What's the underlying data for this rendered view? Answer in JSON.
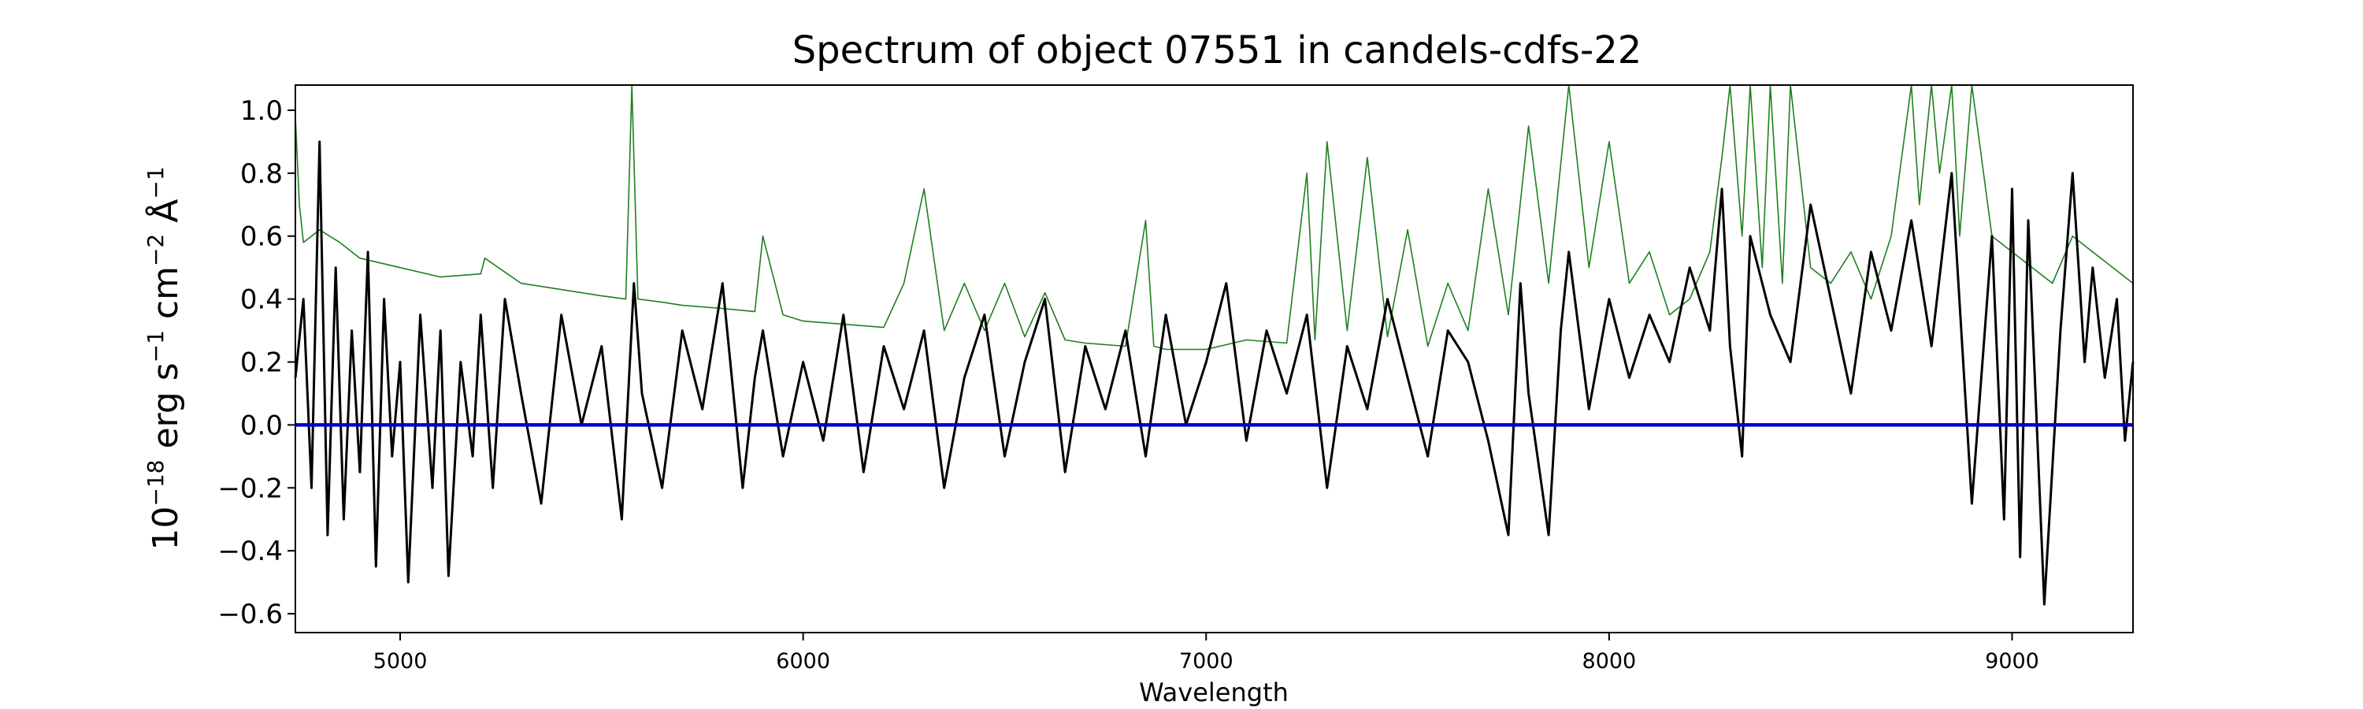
{
  "chart_data": {
    "type": "line",
    "title": "Spectrum of object 07551 in candels-cdfs-22",
    "xlabel": "Wavelength",
    "ylabel_base": "10",
    "ylabel_exp": "−18",
    "ylabel_units": [
      {
        "base": " erg s",
        "exp": "−1"
      },
      {
        "base": " cm",
        "exp": "−2"
      },
      {
        "base": " Å",
        "exp": "−1"
      }
    ],
    "xlim": [
      4740,
      9300
    ],
    "ylim": [
      -0.66,
      1.08
    ],
    "xticks": [
      5000,
      6000,
      7000,
      8000,
      9000
    ],
    "xtick_labels": [
      "5000",
      "6000",
      "7000",
      "8000",
      "9000"
    ],
    "yticks": [
      -0.6,
      -0.4,
      -0.2,
      0.0,
      0.2,
      0.4,
      0.6,
      0.8,
      1.0
    ],
    "ytick_labels": [
      "−0.6",
      "−0.4",
      "−0.2",
      "0.0",
      "0.2",
      "0.4",
      "0.6",
      "0.8",
      "1.0"
    ],
    "grid": false,
    "series": [
      {
        "role": "flux",
        "color": "#000000",
        "x": [
          4740,
          4760,
          4780,
          4800,
          4820,
          4840,
          4860,
          4880,
          4900,
          4920,
          4940,
          4960,
          4980,
          5000,
          5020,
          5050,
          5080,
          5100,
          5120,
          5150,
          5180,
          5200,
          5230,
          5260,
          5300,
          5350,
          5400,
          5450,
          5500,
          5550,
          5580,
          5600,
          5650,
          5700,
          5750,
          5800,
          5850,
          5880,
          5900,
          5950,
          6000,
          6050,
          6100,
          6150,
          6200,
          6250,
          6300,
          6350,
          6400,
          6450,
          6500,
          6550,
          6600,
          6650,
          6700,
          6750,
          6800,
          6850,
          6900,
          6950,
          7000,
          7050,
          7100,
          7150,
          7200,
          7250,
          7300,
          7350,
          7400,
          7450,
          7500,
          7550,
          7600,
          7650,
          7700,
          7750,
          7780,
          7800,
          7850,
          7880,
          7900,
          7950,
          8000,
          8050,
          8100,
          8150,
          8200,
          8250,
          8280,
          8300,
          8330,
          8350,
          8400,
          8450,
          8500,
          8550,
          8600,
          8650,
          8700,
          8750,
          8800,
          8850,
          8900,
          8950,
          8980,
          9000,
          9020,
          9040,
          9080,
          9120,
          9150,
          9180,
          9200,
          9230,
          9260,
          9280,
          9300
        ],
        "y": [
          0.15,
          0.4,
          -0.2,
          0.9,
          -0.35,
          0.5,
          -0.3,
          0.3,
          -0.15,
          0.55,
          -0.45,
          0.4,
          -0.1,
          0.2,
          -0.5,
          0.35,
          -0.2,
          0.3,
          -0.48,
          0.2,
          -0.1,
          0.35,
          -0.2,
          0.4,
          0.1,
          -0.25,
          0.35,
          0.0,
          0.25,
          -0.3,
          0.45,
          0.1,
          -0.2,
          0.3,
          0.05,
          0.45,
          -0.2,
          0.15,
          0.3,
          -0.1,
          0.2,
          -0.05,
          0.35,
          -0.15,
          0.25,
          0.05,
          0.3,
          -0.2,
          0.15,
          0.35,
          -0.1,
          0.2,
          0.4,
          -0.15,
          0.25,
          0.05,
          0.3,
          -0.1,
          0.35,
          0.0,
          0.2,
          0.45,
          -0.05,
          0.3,
          0.1,
          0.35,
          -0.2,
          0.25,
          0.05,
          0.4,
          0.15,
          -0.1,
          0.3,
          0.2,
          -0.05,
          -0.35,
          0.45,
          0.1,
          -0.35,
          0.3,
          0.55,
          0.05,
          0.4,
          0.15,
          0.35,
          0.2,
          0.5,
          0.3,
          0.75,
          0.25,
          -0.1,
          0.6,
          0.35,
          0.2,
          0.7,
          0.4,
          0.1,
          0.55,
          0.3,
          0.65,
          0.25,
          0.8,
          -0.25,
          0.6,
          -0.3,
          0.75,
          -0.42,
          0.65,
          -0.57,
          0.3,
          0.8,
          0.2,
          0.5,
          0.15,
          0.4,
          -0.05,
          0.2
        ]
      },
      {
        "role": "error",
        "color": "#1f7f1f",
        "x": [
          4740,
          4750,
          4760,
          4780,
          4800,
          4850,
          4900,
          5000,
          5100,
          5200,
          5210,
          5300,
          5400,
          5500,
          5560,
          5575,
          5590,
          5650,
          5700,
          5800,
          5880,
          5900,
          5950,
          6000,
          6100,
          6200,
          6250,
          6300,
          6350,
          6400,
          6450,
          6500,
          6550,
          6600,
          6650,
          6700,
          6800,
          6850,
          6870,
          6900,
          7000,
          7100,
          7200,
          7250,
          7270,
          7300,
          7350,
          7400,
          7450,
          7500,
          7550,
          7600,
          7650,
          7700,
          7750,
          7800,
          7850,
          7900,
          7950,
          8000,
          8050,
          8100,
          8150,
          8200,
          8250,
          8280,
          8300,
          8330,
          8350,
          8380,
          8400,
          8430,
          8450,
          8500,
          8550,
          8600,
          8650,
          8700,
          8750,
          8770,
          8800,
          8820,
          8850,
          8870,
          8900,
          8950,
          9000,
          9050,
          9100,
          9150,
          9200,
          9250,
          9300
        ],
        "y": [
          0.98,
          0.7,
          0.58,
          0.6,
          0.62,
          0.58,
          0.53,
          0.5,
          0.47,
          0.48,
          0.53,
          0.45,
          0.43,
          0.41,
          0.4,
          1.08,
          0.4,
          0.39,
          0.38,
          0.37,
          0.36,
          0.6,
          0.35,
          0.33,
          0.32,
          0.31,
          0.45,
          0.75,
          0.3,
          0.45,
          0.3,
          0.45,
          0.28,
          0.42,
          0.27,
          0.26,
          0.25,
          0.65,
          0.25,
          0.24,
          0.24,
          0.27,
          0.26,
          0.8,
          0.27,
          0.9,
          0.3,
          0.85,
          0.28,
          0.62,
          0.25,
          0.45,
          0.3,
          0.75,
          0.35,
          0.95,
          0.45,
          1.08,
          0.5,
          0.9,
          0.45,
          0.55,
          0.35,
          0.4,
          0.55,
          0.85,
          1.08,
          0.6,
          1.08,
          0.5,
          1.08,
          0.45,
          1.08,
          0.5,
          0.45,
          0.55,
          0.4,
          0.6,
          1.08,
          0.7,
          1.08,
          0.8,
          1.08,
          0.6,
          1.08,
          0.6,
          0.55,
          0.5,
          0.45,
          0.6,
          0.55,
          0.5,
          0.45
        ]
      },
      {
        "role": "zero",
        "color": "#0000cc",
        "x": [
          4740,
          9300
        ],
        "y": [
          0,
          0
        ]
      }
    ]
  }
}
